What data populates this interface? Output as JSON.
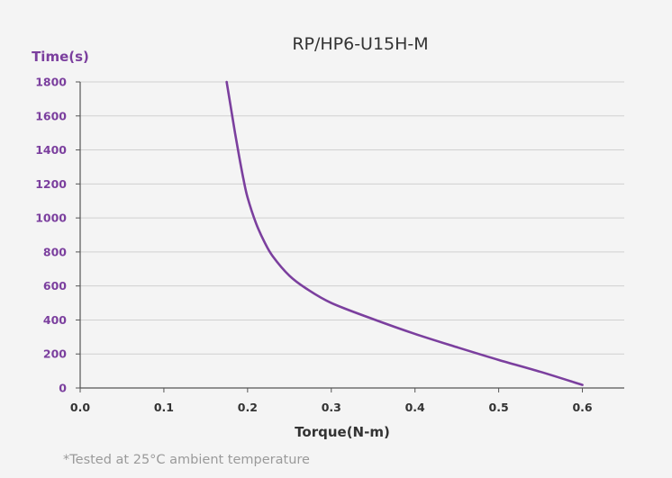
{
  "chart_data": {
    "type": "line",
    "title": "RP/HP6-U15H-M",
    "xlabel": "Torque(N-m)",
    "ylabel": "Time(s)",
    "xlim": [
      0,
      0.65
    ],
    "ylim": [
      0,
      1800
    ],
    "xticks": [
      "0.0",
      "0.1",
      "0.2",
      "0.3",
      "0.4",
      "0.5",
      "0.6"
    ],
    "yticks": [
      "0",
      "200",
      "400",
      "600",
      "800",
      "1000",
      "1200",
      "1400",
      "1600",
      "1800"
    ],
    "grid": "horizontal",
    "series": [
      {
        "x": [
          0.175,
          0.18,
          0.185,
          0.19,
          0.195,
          0.2,
          0.21,
          0.22,
          0.23,
          0.25,
          0.27,
          0.3,
          0.35,
          0.4,
          0.45,
          0.5,
          0.55,
          0.6
        ],
        "y": [
          1800,
          1650,
          1500,
          1360,
          1230,
          1120,
          970,
          860,
          775,
          660,
          585,
          500,
          405,
          318,
          240,
          165,
          95,
          18
        ]
      }
    ],
    "colors": {
      "line": "#7b3f9e",
      "axis_label": "#7b3f9e",
      "tick_label": "#7b3f9e",
      "grid": "#d0d0d0",
      "axis": "#555555"
    }
  },
  "footnote": "*Tested at 25°C ambient temperature"
}
